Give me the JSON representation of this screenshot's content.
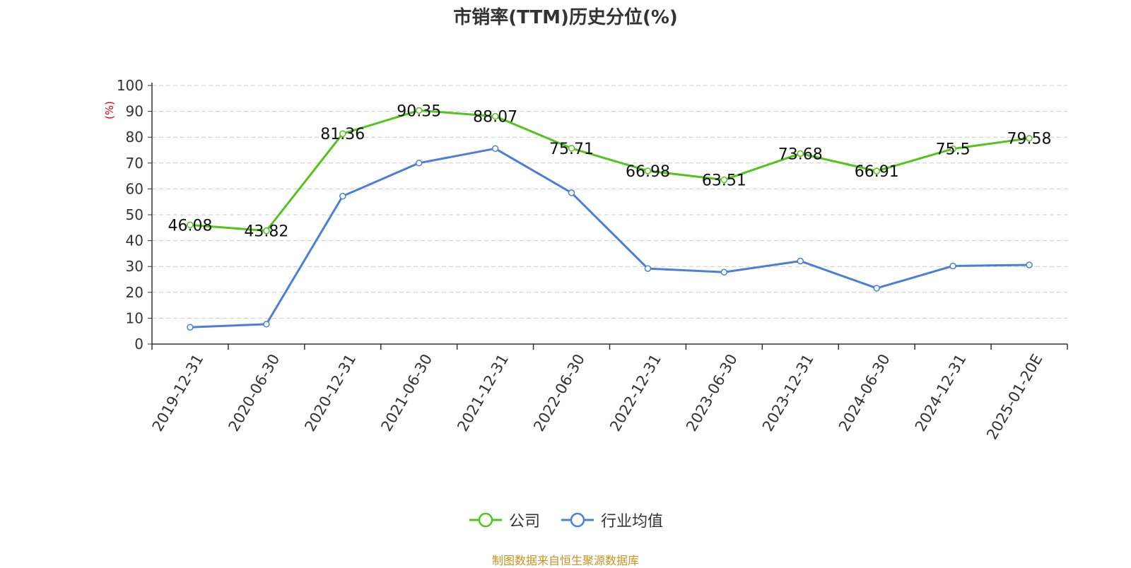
{
  "chart_data": {
    "type": "line",
    "title": "市销率(TTM)历史分位(%)",
    "ylabel": "(%)",
    "ylim": [
      0,
      100
    ],
    "yticks": [
      0,
      10,
      20,
      30,
      40,
      50,
      60,
      70,
      80,
      90,
      100
    ],
    "categories": [
      "2019-12-31",
      "2020-06-30",
      "2020-12-31",
      "2021-06-30",
      "2021-12-31",
      "2022-06-30",
      "2022-12-31",
      "2023-06-30",
      "2023-12-31",
      "2024-06-30",
      "2024-12-31",
      "2025-01-20E"
    ],
    "grid": true,
    "legend_position": "bottom",
    "series": [
      {
        "name": "公司",
        "color": "#52c41a",
        "values": [
          46.08,
          43.82,
          81.36,
          90.35,
          88.07,
          75.71,
          66.98,
          63.51,
          73.68,
          66.91,
          75.5,
          79.58
        ],
        "labels": [
          "46.08",
          "43.82",
          "81.36",
          "90.35",
          "88.07",
          "75.71",
          "66.98",
          "63.51",
          "73.68",
          "66.91",
          "75.5",
          "79.58"
        ],
        "show_labels": true
      },
      {
        "name": "行业均值",
        "color": "#4a7fdb",
        "values": [
          6.5,
          7.7,
          57.2,
          70.0,
          75.6,
          58.5,
          29.2,
          27.8,
          32.1,
          21.6,
          30.2,
          30.6
        ],
        "show_labels": false
      }
    ]
  },
  "footer": {
    "source": "制图数据来自恒生聚源数据库"
  }
}
